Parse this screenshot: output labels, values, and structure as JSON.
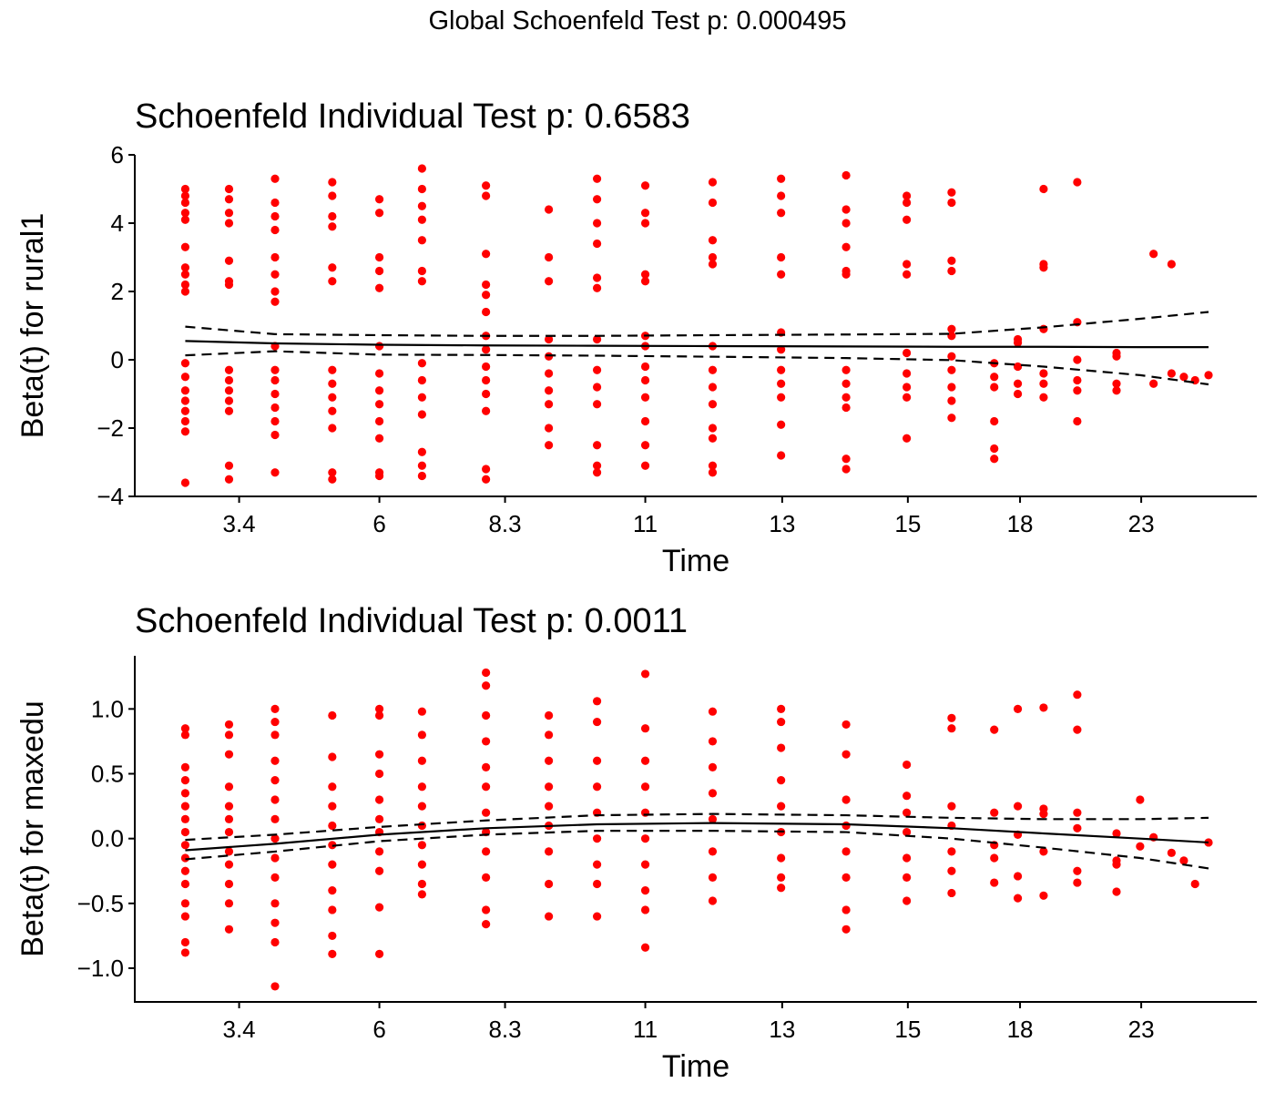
{
  "title": "Global Schoenfeld Test p: 0.000495",
  "chart_data": [
    {
      "type": "scatter",
      "title": "Schoenfeld Individual Test p: 0.6583",
      "xlabel": "Time",
      "ylabel": "Beta(t) for rural1",
      "xlim": [
        0,
        100
      ],
      "ylim": [
        -4,
        6
      ],
      "xticks": [
        {
          "value": 9.3,
          "label": "3.4"
        },
        {
          "value": 21.8,
          "label": "6"
        },
        {
          "value": 33.0,
          "label": "8.3"
        },
        {
          "value": 45.5,
          "label": "11"
        },
        {
          "value": 57.7,
          "label": "13"
        },
        {
          "value": 68.9,
          "label": "15"
        },
        {
          "value": 78.9,
          "label": "18"
        },
        {
          "value": 89.7,
          "label": "23"
        }
      ],
      "yticks": [
        {
          "value": -4,
          "label": "−4"
        },
        {
          "value": -2,
          "label": "−2"
        },
        0,
        2,
        4,
        6
      ],
      "color": "#ff0000",
      "x": [
        4.5,
        4.5,
        4.5,
        4.5,
        4.5,
        4.5,
        4.5,
        4.5,
        4.5,
        4.5,
        4.5,
        4.5,
        4.5,
        4.5,
        4.5,
        4.5,
        4.5,
        4.5,
        8.4,
        8.4,
        8.4,
        8.4,
        8.4,
        8.4,
        8.4,
        8.4,
        8.4,
        8.4,
        8.4,
        8.4,
        8.4,
        8.4,
        12.5,
        12.5,
        12.5,
        12.5,
        12.5,
        12.5,
        12.5,
        12.5,
        12.5,
        12.5,
        12.5,
        12.5,
        12.5,
        12.5,
        12.5,
        12.5,
        17.6,
        17.6,
        17.6,
        17.6,
        17.6,
        17.6,
        17.6,
        17.6,
        17.6,
        17.6,
        17.6,
        17.6,
        17.6,
        21.8,
        21.8,
        21.8,
        21.8,
        21.8,
        21.8,
        21.8,
        21.8,
        21.8,
        21.8,
        21.8,
        21.8,
        21.8,
        25.6,
        25.6,
        25.6,
        25.6,
        25.6,
        25.6,
        25.6,
        25.6,
        25.6,
        25.6,
        25.6,
        25.6,
        25.6,
        25.6,
        31.3,
        31.3,
        31.3,
        31.3,
        31.3,
        31.3,
        31.3,
        31.3,
        31.3,
        31.3,
        31.3,
        31.3,
        31.3,
        31.3,
        36.9,
        36.9,
        36.9,
        36.9,
        36.9,
        36.9,
        36.9,
        36.9,
        36.9,
        36.9,
        41.2,
        41.2,
        41.2,
        41.2,
        41.2,
        41.2,
        41.2,
        41.2,
        41.2,
        41.2,
        41.2,
        41.2,
        41.2,
        45.5,
        45.5,
        45.5,
        45.5,
        45.5,
        45.5,
        45.5,
        45.5,
        45.5,
        45.5,
        45.5,
        45.5,
        45.5,
        51.5,
        51.5,
        51.5,
        51.5,
        51.5,
        51.5,
        51.5,
        51.5,
        51.5,
        51.5,
        51.5,
        51.5,
        51.5,
        57.6,
        57.6,
        57.6,
        57.6,
        57.6,
        57.6,
        57.6,
        57.6,
        57.6,
        57.6,
        57.6,
        57.6,
        63.4,
        63.4,
        63.4,
        63.4,
        63.4,
        63.4,
        63.4,
        63.4,
        63.4,
        63.4,
        63.4,
        63.4,
        68.8,
        68.8,
        68.8,
        68.8,
        68.8,
        68.8,
        68.8,
        68.8,
        68.8,
        68.8,
        72.8,
        72.8,
        72.8,
        72.8,
        72.8,
        72.8,
        72.8,
        72.8,
        72.8,
        72.8,
        72.8,
        76.6,
        76.6,
        76.6,
        76.6,
        76.6,
        76.6,
        78.7,
        78.7,
        78.7,
        78.7,
        78.7,
        81.0,
        81.0,
        81.0,
        81.0,
        81.0,
        81.0,
        81.0,
        84.0,
        84.0,
        84.0,
        84.0,
        84.0,
        84.0,
        87.5,
        87.5,
        87.5,
        87.5,
        90.8,
        90.8,
        92.4,
        92.4,
        93.5,
        94.5,
        95.7
      ],
      "values": [
        5.0,
        4.8,
        4.6,
        4.3,
        4.1,
        3.3,
        2.7,
        2.5,
        2.2,
        2.0,
        -0.1,
        -0.5,
        -0.9,
        -1.2,
        -1.5,
        -1.8,
        -2.1,
        -3.6,
        5.0,
        4.7,
        4.3,
        4.0,
        2.9,
        2.3,
        2.2,
        -0.3,
        -0.6,
        -0.9,
        -1.2,
        -1.5,
        -3.1,
        -3.5,
        5.3,
        4.6,
        4.2,
        3.8,
        3.0,
        2.5,
        2.0,
        1.7,
        0.4,
        -0.3,
        -0.6,
        -1.0,
        -1.4,
        -1.8,
        -2.2,
        -3.3,
        5.2,
        4.8,
        4.2,
        3.9,
        2.7,
        2.3,
        -0.3,
        -0.7,
        -1.1,
        -1.5,
        -2.0,
        -3.3,
        -3.5,
        4.7,
        4.3,
        3.0,
        2.6,
        2.1,
        0.4,
        -0.4,
        -0.9,
        -1.3,
        -1.8,
        -2.3,
        -3.3,
        -3.4,
        5.6,
        5.0,
        4.5,
        4.1,
        3.5,
        2.6,
        2.3,
        -0.1,
        -0.6,
        -1.1,
        -1.6,
        -2.7,
        -3.1,
        -3.4,
        5.1,
        4.8,
        3.1,
        2.2,
        1.9,
        1.4,
        0.7,
        0.3,
        -0.2,
        -0.6,
        -1.0,
        -1.5,
        -3.2,
        -3.5,
        4.4,
        3.0,
        2.3,
        0.6,
        0.1,
        -0.4,
        -0.9,
        -1.3,
        -2.0,
        -2.5,
        5.3,
        4.7,
        4.0,
        3.4,
        2.4,
        2.1,
        0.6,
        -0.3,
        -0.8,
        -1.3,
        -2.5,
        -3.1,
        -3.3,
        5.1,
        4.3,
        4.0,
        2.5,
        2.3,
        0.7,
        0.4,
        -0.2,
        -0.6,
        -1.1,
        -1.8,
        -2.5,
        -3.1,
        5.2,
        4.6,
        3.5,
        3.0,
        2.8,
        0.4,
        -0.3,
        -0.8,
        -1.3,
        -2.0,
        -2.3,
        -3.1,
        -3.3,
        5.3,
        4.8,
        4.3,
        3.0,
        2.5,
        0.8,
        0.3,
        -0.3,
        -0.7,
        -1.1,
        -1.9,
        -2.8,
        5.4,
        4.4,
        4.0,
        3.3,
        2.6,
        2.5,
        -0.3,
        -0.7,
        -1.1,
        -1.4,
        -2.9,
        -3.2,
        4.8,
        4.6,
        4.1,
        2.8,
        2.5,
        0.2,
        -0.4,
        -0.8,
        -1.1,
        -2.3,
        4.9,
        4.6,
        2.9,
        2.6,
        0.9,
        0.7,
        0.1,
        -0.3,
        -0.8,
        -1.2,
        -1.7,
        -0.1,
        -0.5,
        -0.8,
        -1.8,
        -2.6,
        -2.9,
        0.6,
        0.5,
        -0.2,
        -0.7,
        -1.0,
        5.0,
        2.8,
        2.7,
        0.9,
        -0.4,
        -0.7,
        -1.1,
        5.2,
        1.1,
        0.0,
        -0.6,
        -0.9,
        -1.8,
        0.2,
        0.1,
        -0.7,
        -0.9,
        3.1,
        -0.7,
        2.8,
        -0.4,
        -0.5,
        -0.6,
        -0.45
      ],
      "lines": [
        {
          "style": "solid",
          "color": "#000000",
          "x": [
            4.5,
            12.5,
            21.8,
            31.3,
            41.2,
            51.5,
            63.4,
            72.8,
            81.0,
            89.6,
            95.7
          ],
          "y": [
            0.55,
            0.48,
            0.44,
            0.42,
            0.41,
            0.4,
            0.39,
            0.38,
            0.38,
            0.37,
            0.37
          ]
        },
        {
          "style": "dashed",
          "color": "#000000",
          "x": [
            4.5,
            12.5,
            21.8,
            31.3,
            41.2,
            51.5,
            63.4,
            72.8,
            81.0,
            89.6,
            95.7
          ],
          "y": [
            0.97,
            0.75,
            0.72,
            0.7,
            0.7,
            0.72,
            0.74,
            0.76,
            0.95,
            1.2,
            1.4
          ]
        },
        {
          "style": "dashed",
          "color": "#000000",
          "x": [
            4.5,
            12.5,
            21.8,
            31.3,
            41.2,
            51.5,
            63.4,
            72.8,
            81.0,
            89.6,
            95.7
          ],
          "y": [
            0.13,
            0.25,
            0.15,
            0.14,
            0.12,
            0.09,
            0.05,
            -0.01,
            -0.2,
            -0.45,
            -0.72
          ]
        }
      ]
    },
    {
      "type": "scatter",
      "title": "Schoenfeld Individual Test p: 0.0011",
      "xlabel": "Time",
      "ylabel": "Beta(t) for maxedu",
      "xlim": [
        0,
        100
      ],
      "ylim": [
        -1.26,
        1.41
      ],
      "xticks": [
        {
          "value": 9.3,
          "label": "3.4"
        },
        {
          "value": 21.8,
          "label": "6"
        },
        {
          "value": 33.0,
          "label": "8.3"
        },
        {
          "value": 45.5,
          "label": "11"
        },
        {
          "value": 57.7,
          "label": "13"
        },
        {
          "value": 68.9,
          "label": "15"
        },
        {
          "value": 78.9,
          "label": "18"
        },
        {
          "value": 89.7,
          "label": "23"
        }
      ],
      "yticks": [
        {
          "value": -1.0,
          "label": "−1.0"
        },
        {
          "value": -0.5,
          "label": "−0.5"
        },
        {
          "value": 0,
          "label": "0.0"
        },
        0.5,
        {
          "value": 1,
          "label": "1.0"
        }
      ],
      "color": "#ff0000",
      "x": [
        4.5,
        4.5,
        4.5,
        4.5,
        4.5,
        4.5,
        4.5,
        4.5,
        4.5,
        4.5,
        4.5,
        4.5,
        4.5,
        4.5,
        4.5,
        4.5,
        8.4,
        8.4,
        8.4,
        8.4,
        8.4,
        8.4,
        8.4,
        8.4,
        8.4,
        8.4,
        8.4,
        8.4,
        12.5,
        12.5,
        12.5,
        12.5,
        12.5,
        12.5,
        12.5,
        12.5,
        12.5,
        12.5,
        12.5,
        12.5,
        12.5,
        12.5,
        17.6,
        17.6,
        17.6,
        17.6,
        17.6,
        17.6,
        17.6,
        17.6,
        17.6,
        17.6,
        17.6,
        21.8,
        21.8,
        21.8,
        21.8,
        21.8,
        21.8,
        21.8,
        21.8,
        21.8,
        21.8,
        21.8,
        25.6,
        25.6,
        25.6,
        25.6,
        25.6,
        25.6,
        25.6,
        25.6,
        25.6,
        25.6,
        31.3,
        31.3,
        31.3,
        31.3,
        31.3,
        31.3,
        31.3,
        31.3,
        31.3,
        31.3,
        31.3,
        31.3,
        36.9,
        36.9,
        36.9,
        36.9,
        36.9,
        36.9,
        36.9,
        36.9,
        36.9,
        41.2,
        41.2,
        41.2,
        41.2,
        41.2,
        41.2,
        41.2,
        41.2,
        41.2,
        45.5,
        45.5,
        45.5,
        45.5,
        45.5,
        45.5,
        45.5,
        45.5,
        45.5,
        45.5,
        51.5,
        51.5,
        51.5,
        51.5,
        51.5,
        51.5,
        51.5,
        51.5,
        57.6,
        57.6,
        57.6,
        57.6,
        57.6,
        57.6,
        57.6,
        57.6,
        57.6,
        63.4,
        63.4,
        63.4,
        63.4,
        63.4,
        63.4,
        63.4,
        63.4,
        68.8,
        68.8,
        68.8,
        68.8,
        68.8,
        68.8,
        68.8,
        72.8,
        72.8,
        72.8,
        72.8,
        72.8,
        72.8,
        72.8,
        76.6,
        76.6,
        76.6,
        76.6,
        76.6,
        78.7,
        78.7,
        78.7,
        78.7,
        78.7,
        81.0,
        81.0,
        81.0,
        81.0,
        81.0,
        84.0,
        84.0,
        84.0,
        84.0,
        84.0,
        84.0,
        87.5,
        87.5,
        87.5,
        87.5,
        89.6,
        89.6,
        90.8,
        92.4,
        93.5,
        94.5,
        95.7
      ],
      "values": [
        0.85,
        0.8,
        0.55,
        0.45,
        0.35,
        0.25,
        0.15,
        0.05,
        -0.05,
        -0.15,
        -0.25,
        -0.35,
        -0.5,
        -0.6,
        -0.8,
        -0.88,
        0.88,
        0.8,
        0.65,
        0.4,
        0.25,
        0.15,
        0.05,
        -0.1,
        -0.2,
        -0.35,
        -0.5,
        -0.7,
        1.0,
        0.9,
        0.8,
        0.6,
        0.45,
        0.3,
        0.15,
        0.0,
        -0.15,
        -0.3,
        -0.5,
        -0.65,
        -0.8,
        -1.14,
        0.95,
        0.63,
        0.4,
        0.25,
        0.1,
        -0.05,
        -0.2,
        -0.4,
        -0.55,
        -0.75,
        -0.89,
        1.0,
        0.95,
        0.65,
        0.5,
        0.3,
        0.15,
        0.05,
        -0.1,
        -0.25,
        -0.53,
        -0.89,
        0.98,
        0.8,
        0.6,
        0.4,
        0.25,
        0.1,
        -0.05,
        -0.2,
        -0.35,
        -0.43,
        1.28,
        1.18,
        0.95,
        0.75,
        0.55,
        0.4,
        0.2,
        0.05,
        -0.1,
        -0.3,
        -0.55,
        -0.66,
        0.95,
        0.8,
        0.6,
        0.4,
        0.25,
        0.1,
        -0.1,
        -0.35,
        -0.6,
        1.06,
        0.9,
        0.6,
        0.4,
        0.2,
        0.0,
        -0.2,
        -0.35,
        -0.6,
        1.27,
        0.85,
        0.6,
        0.4,
        0.2,
        0.0,
        -0.2,
        -0.4,
        -0.55,
        -0.84,
        0.98,
        0.75,
        0.55,
        0.35,
        0.15,
        -0.1,
        -0.3,
        -0.48,
        1.0,
        0.9,
        0.7,
        0.45,
        0.25,
        0.05,
        -0.15,
        -0.3,
        -0.38,
        0.88,
        0.65,
        0.3,
        0.1,
        -0.1,
        -0.3,
        -0.55,
        -0.7,
        0.57,
        0.33,
        0.2,
        0.05,
        -0.15,
        -0.3,
        -0.48,
        0.93,
        0.85,
        0.25,
        0.1,
        -0.1,
        -0.25,
        -0.42,
        0.84,
        0.2,
        -0.05,
        -0.15,
        -0.34,
        1.0,
        0.25,
        0.03,
        -0.29,
        -0.46,
        1.01,
        0.23,
        0.19,
        -0.1,
        -0.44,
        1.11,
        0.84,
        0.2,
        0.08,
        -0.25,
        -0.34,
        0.04,
        -0.17,
        -0.2,
        -0.41,
        0.3,
        -0.06,
        0.01,
        -0.11,
        -0.17,
        -0.35,
        -0.03
      ],
      "lines": [
        {
          "style": "solid",
          "color": "#000000",
          "x": [
            4.5,
            12.5,
            21.8,
            31.3,
            41.2,
            51.5,
            63.4,
            72.8,
            81.0,
            89.6,
            95.7
          ],
          "y": [
            -0.09,
            -0.04,
            0.03,
            0.08,
            0.11,
            0.12,
            0.11,
            0.08,
            0.04,
            0.0,
            -0.03
          ]
        },
        {
          "style": "dashed",
          "color": "#000000",
          "x": [
            4.5,
            12.5,
            21.8,
            31.3,
            41.2,
            51.5,
            63.4,
            72.8,
            81.0,
            89.6,
            95.7
          ],
          "y": [
            -0.01,
            0.03,
            0.09,
            0.14,
            0.18,
            0.19,
            0.18,
            0.16,
            0.15,
            0.15,
            0.16
          ]
        },
        {
          "style": "dashed",
          "color": "#000000",
          "x": [
            4.5,
            12.5,
            21.8,
            31.3,
            41.2,
            51.5,
            63.4,
            72.8,
            81.0,
            89.6,
            95.7
          ],
          "y": [
            -0.16,
            -0.1,
            -0.02,
            0.03,
            0.06,
            0.06,
            0.05,
            0.0,
            -0.07,
            -0.15,
            -0.23
          ]
        }
      ]
    }
  ]
}
